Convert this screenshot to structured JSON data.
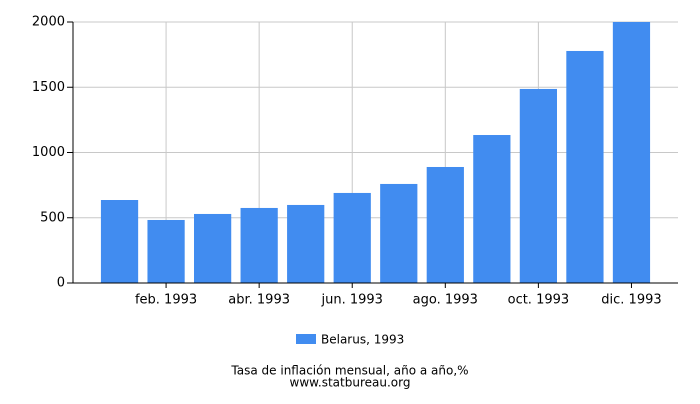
{
  "chart_data": {
    "type": "bar",
    "categories": [
      null,
      "feb. 1993",
      null,
      "abr. 1993",
      null,
      "jun. 1993",
      null,
      "ago. 1993",
      null,
      "oct. 1993",
      null,
      "dic. 1993"
    ],
    "series": [
      {
        "name": "Belarus, 1993",
        "color": "#418cf0",
        "values": [
          636,
          483,
          529,
          575,
          598,
          690,
          759,
          889,
          1134,
          1487,
          1778,
          2000
        ]
      }
    ],
    "ylim": [
      0,
      2000
    ],
    "yticks": [
      0,
      500,
      1000,
      1500,
      2000
    ],
    "grid": true,
    "caption": "Tasa de inflación mensual, año a año,%",
    "source": "www.statbureau.org"
  }
}
